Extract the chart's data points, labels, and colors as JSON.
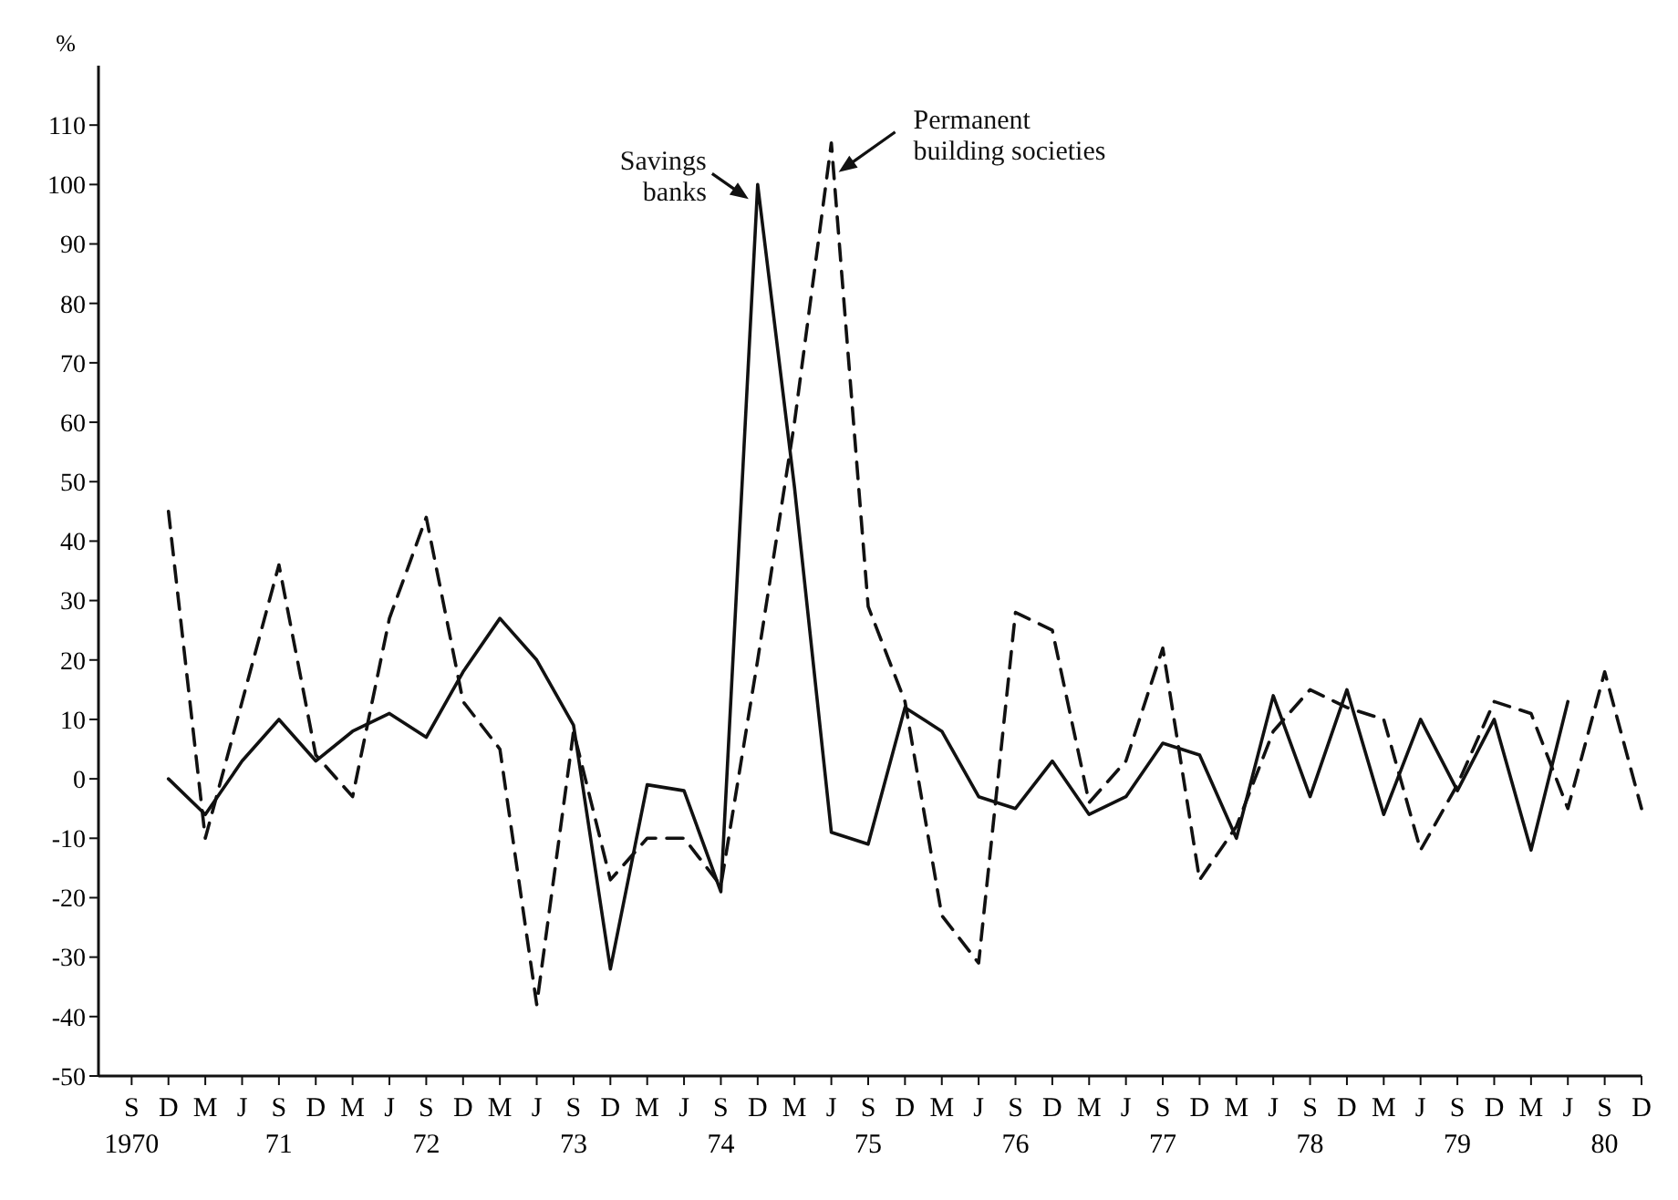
{
  "chart_data": {
    "type": "line",
    "ylabel": "%",
    "categories": [
      "S\n1970",
      "D",
      "M",
      "J",
      "S\n71",
      "D",
      "M",
      "J",
      "S\n72",
      "D",
      "M",
      "J",
      "S\n73",
      "D",
      "M",
      "J",
      "S\n74",
      "D",
      "M",
      "J",
      "S\n75",
      "D",
      "M",
      "J",
      "S\n76",
      "D",
      "M",
      "J",
      "S\n77",
      "D",
      "M",
      "J",
      "S\n78",
      "D",
      "M",
      "J",
      "S\n79",
      "D",
      "M",
      "J",
      "S\n80",
      "D"
    ],
    "series": [
      {
        "name": "Savings banks",
        "color": "#111111",
        "line_style": "solid",
        "values": [
          null,
          0,
          -6,
          3,
          10,
          3,
          8,
          11,
          7,
          18,
          27,
          20,
          9,
          -32,
          -1,
          -2,
          -19,
          100,
          49,
          -9,
          -11,
          12,
          8,
          -3,
          -5,
          3,
          -6,
          -3,
          6,
          4,
          -10,
          14,
          -3,
          15,
          -6,
          10,
          -2,
          10,
          -12,
          13,
          null,
          null
        ]
      },
      {
        "name": "Permanent building societies",
        "color": "#111111",
        "line_style": "dashed",
        "values": [
          null,
          45,
          -10,
          13,
          36,
          4,
          -3,
          27,
          44,
          13,
          5,
          -38,
          8,
          -17,
          -10,
          -10,
          -18,
          20,
          60,
          107,
          29,
          13,
          -23,
          -31,
          28,
          25,
          -4,
          3,
          22,
          -17,
          -8,
          8,
          15,
          12,
          10,
          -12,
          -1,
          13,
          11,
          -5,
          18,
          -5
        ]
      }
    ],
    "ylim": [
      -50,
      120
    ],
    "yticks": [
      -50,
      -40,
      -30,
      -20,
      -10,
      0,
      10,
      20,
      30,
      40,
      50,
      60,
      70,
      80,
      90,
      100,
      110
    ],
    "marker": "none"
  }
}
